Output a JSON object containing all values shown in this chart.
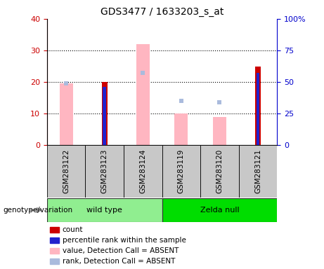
{
  "title": "GDS3477 / 1633203_s_at",
  "samples": [
    "GSM283122",
    "GSM283123",
    "GSM283124",
    "GSM283119",
    "GSM283120",
    "GSM283121"
  ],
  "group_list": [
    {
      "name": "wild type",
      "indices": [
        0,
        1,
        2
      ],
      "color": "#90EE90"
    },
    {
      "name": "Zelda null",
      "indices": [
        3,
        4,
        5
      ],
      "color": "#00DD00"
    }
  ],
  "ylim_left": [
    0,
    40
  ],
  "ylim_right": [
    0,
    100
  ],
  "yticks_left": [
    0,
    10,
    20,
    30,
    40
  ],
  "yticks_right": [
    0,
    25,
    50,
    75,
    100
  ],
  "yticklabels_right": [
    "0",
    "25",
    "50",
    "75",
    "100%"
  ],
  "colors": {
    "count": "#CC0000",
    "rank": "#2222CC",
    "value_absent": "#FFB6C1",
    "rank_absent": "#AABBDD"
  },
  "data": {
    "GSM283122": {
      "count": null,
      "rank": null,
      "value_absent": 19.5,
      "rank_absent": 19.5
    },
    "GSM283123": {
      "count": 20.0,
      "rank": 18.5,
      "value_absent": null,
      "rank_absent": null
    },
    "GSM283124": {
      "count": null,
      "rank": null,
      "value_absent": 32.0,
      "rank_absent": 23.0
    },
    "GSM283119": {
      "count": null,
      "rank": null,
      "value_absent": 10.0,
      "rank_absent": 14.0
    },
    "GSM283120": {
      "count": null,
      "rank": null,
      "value_absent": 9.0,
      "rank_absent": 13.5
    },
    "GSM283121": {
      "count": 25.0,
      "rank": 23.0,
      "value_absent": null,
      "rank_absent": null
    }
  },
  "legend_items": [
    {
      "label": "count",
      "color": "#CC0000"
    },
    {
      "label": "percentile rank within the sample",
      "color": "#2222CC"
    },
    {
      "label": "value, Detection Call = ABSENT",
      "color": "#FFB6C1"
    },
    {
      "label": "rank, Detection Call = ABSENT",
      "color": "#AABBDD"
    }
  ],
  "genotype_label": "genotype/variation",
  "gray_box_color": "#C8C8C8",
  "plot_bg": "#FFFFFF",
  "left_ycolor": "#CC0000",
  "right_ycolor": "#0000CC",
  "grid_lines": [
    10,
    20,
    30
  ],
  "value_bar_width": 0.35,
  "count_bar_width": 0.15,
  "rank_bar_width": 0.08
}
